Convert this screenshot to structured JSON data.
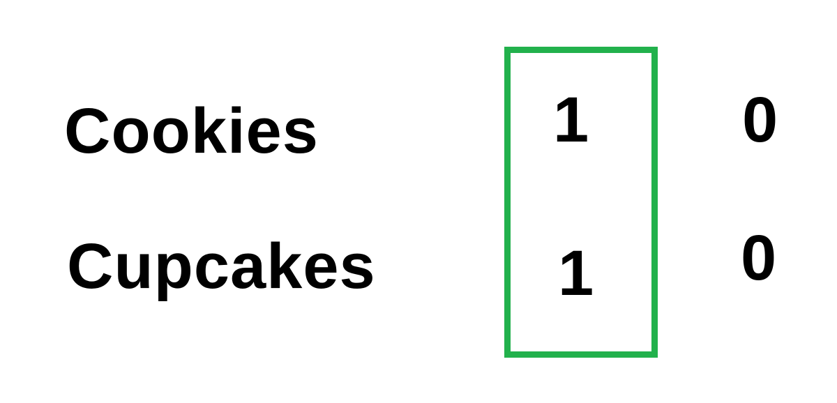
{
  "rows": [
    {
      "label": "Cookies",
      "values": [
        "1",
        "0"
      ]
    },
    {
      "label": "Cupcakes",
      "values": [
        "1",
        "0"
      ]
    }
  ],
  "highlight": {
    "column_index": 0,
    "color": "#22b14c"
  },
  "colors": {
    "text": "#000000",
    "background": "#ffffff"
  }
}
